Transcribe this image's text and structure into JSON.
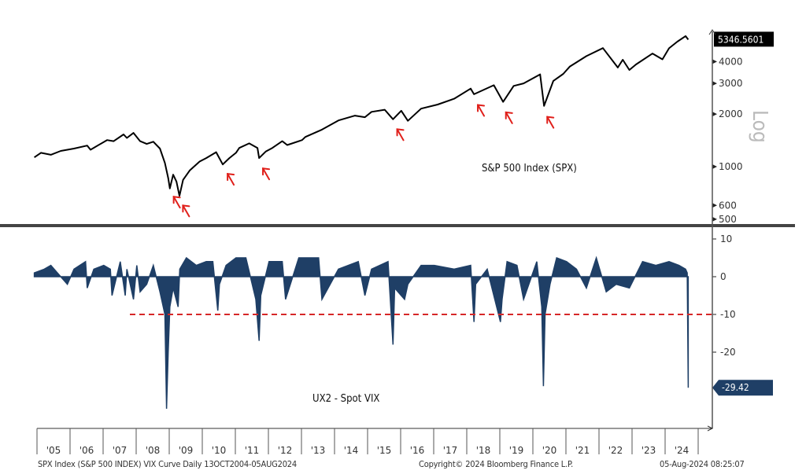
{
  "chart_data": [
    {
      "type": "line",
      "title": "S&P 500 Index (SPX)",
      "y_scale": "log",
      "y_scale_label": "Log",
      "yticks": [
        500,
        600,
        1000,
        2000,
        3000,
        4000
      ],
      "ylim": [
        480,
        5600
      ],
      "last_value_label": "5346.5601",
      "color": "#000000",
      "x": [
        2004.8,
        2005.0,
        2005.3,
        2005.6,
        2006.0,
        2006.4,
        2006.5,
        2007.0,
        2007.2,
        2007.5,
        2007.6,
        2007.8,
        2008.0,
        2008.2,
        2008.4,
        2008.6,
        2008.75,
        2008.85,
        2008.9,
        2009.0,
        2009.1,
        2009.19,
        2009.3,
        2009.5,
        2009.8,
        2010.0,
        2010.3,
        2010.5,
        2010.7,
        2010.9,
        2011.0,
        2011.3,
        2011.55,
        2011.6,
        2011.8,
        2012.0,
        2012.3,
        2012.45,
        2012.9,
        2013.0,
        2013.5,
        2014.0,
        2014.5,
        2014.8,
        2015.0,
        2015.4,
        2015.65,
        2015.9,
        2016.1,
        2016.5,
        2017.0,
        2017.5,
        2018.0,
        2018.1,
        2018.7,
        2018.98,
        2019.3,
        2019.6,
        2020.1,
        2020.22,
        2020.5,
        2020.8,
        2021.0,
        2021.5,
        2022.0,
        2022.45,
        2022.6,
        2022.8,
        2023.0,
        2023.5,
        2023.8,
        2024.0,
        2024.25,
        2024.5,
        2024.58
      ],
      "y": [
        1130,
        1200,
        1170,
        1230,
        1270,
        1320,
        1250,
        1420,
        1400,
        1530,
        1460,
        1560,
        1400,
        1350,
        1390,
        1270,
        1050,
        860,
        750,
        900,
        820,
        680,
        840,
        950,
        1070,
        1120,
        1210,
        1030,
        1120,
        1200,
        1280,
        1360,
        1280,
        1120,
        1220,
        1280,
        1400,
        1330,
        1420,
        1480,
        1630,
        1840,
        1960,
        1920,
        2060,
        2120,
        1870,
        2090,
        1830,
        2150,
        2270,
        2450,
        2800,
        2600,
        2930,
        2350,
        2900,
        3000,
        3380,
        2230,
        3100,
        3400,
        3750,
        4300,
        4780,
        3700,
        4100,
        3580,
        3850,
        4450,
        4120,
        4770,
        5200,
        5600,
        5346.56
      ],
      "annotations": {
        "type": "red-arrow",
        "x": [
          2008.92,
          2009.2,
          2010.55,
          2011.62,
          2015.68,
          2018.12,
          2018.97,
          2020.22
        ]
      }
    },
    {
      "type": "area",
      "title": "UX2 - Spot VIX",
      "yticks": [
        10,
        0,
        -10,
        -20
      ],
      "ylim": [
        -40,
        12
      ],
      "last_value_label": "-29.42",
      "color": "#1f3f66",
      "reference_line": {
        "y": -10,
        "style": "dashed",
        "color": "#d62728"
      },
      "x": [
        2004.8,
        2005.1,
        2005.3,
        2005.5,
        2005.8,
        2006.0,
        2006.35,
        2006.4,
        2006.6,
        2006.9,
        2007.1,
        2007.15,
        2007.4,
        2007.55,
        2007.6,
        2007.8,
        2007.9,
        2008.0,
        2008.2,
        2008.4,
        2008.6,
        2008.75,
        2008.8,
        2008.85,
        2008.9,
        2009.0,
        2009.15,
        2009.2,
        2009.4,
        2009.7,
        2010.0,
        2010.2,
        2010.35,
        2010.4,
        2010.6,
        2010.9,
        2011.2,
        2011.5,
        2011.6,
        2011.65,
        2011.9,
        2012.3,
        2012.4,
        2012.8,
        2013.4,
        2013.5,
        2014.0,
        2014.6,
        2014.8,
        2015.0,
        2015.5,
        2015.65,
        2015.7,
        2016.0,
        2016.1,
        2016.5,
        2016.9,
        2017.5,
        2018.0,
        2018.1,
        2018.15,
        2018.5,
        2018.9,
        2018.95,
        2019.1,
        2019.4,
        2019.6,
        2020.0,
        2020.15,
        2020.2,
        2020.25,
        2020.4,
        2020.6,
        2020.9,
        2021.2,
        2021.5,
        2021.8,
        2022.1,
        2022.4,
        2022.8,
        2023.2,
        2023.6,
        2024.0,
        2024.3,
        2024.5,
        2024.55,
        2024.58
      ],
      "y": [
        1,
        2,
        3,
        1,
        -2,
        2,
        4,
        -3,
        2,
        3,
        2,
        -5,
        4,
        -5,
        2,
        -6,
        3,
        -4,
        -2,
        3,
        -4,
        -10,
        -35,
        -20,
        -8,
        -3,
        -8,
        2,
        5,
        3,
        4,
        4,
        -9,
        -2,
        3,
        5,
        5,
        -6,
        -17,
        -5,
        4,
        4,
        -6,
        5,
        5,
        -6,
        2,
        4,
        -5,
        2,
        4,
        -18,
        -3,
        -6,
        -2,
        3,
        3,
        2,
        3,
        -12,
        -2,
        2,
        -12,
        -6,
        4,
        3,
        -6,
        4,
        -8,
        -29,
        -10,
        -2,
        5,
        4,
        2,
        -3,
        5,
        -4,
        -2,
        -3,
        4,
        3,
        4,
        3,
        2,
        1,
        -29.42
      ]
    }
  ],
  "x_axis": {
    "tick_labels": [
      "'05",
      "'06",
      "'07",
      "'08",
      "'09",
      "'10",
      "'11",
      "'12",
      "'13",
      "'14",
      "'15",
      "'16",
      "'17",
      "'18",
      "'19",
      "'20",
      "'21",
      "'22",
      "'23",
      "'24"
    ]
  },
  "footer": {
    "left": "SPX Index (S&P 500 INDEX) VIX Curve  Daily 13OCT2004-05AUG2024",
    "center": "Copyright© 2024 Bloomberg Finance L.P.",
    "right": "05-Aug-2024 08:25:07"
  }
}
